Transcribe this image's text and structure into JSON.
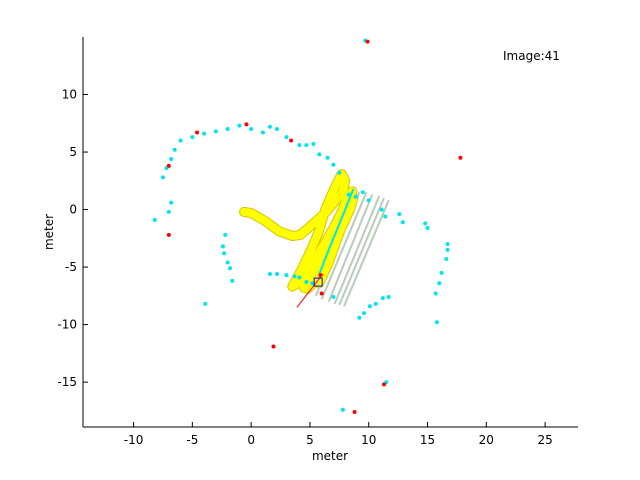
{
  "chart_data": {
    "type": "scatter",
    "title": "",
    "xlabel": "meter",
    "ylabel": "meter",
    "xlim": [
      -14.3,
      27.8
    ],
    "ylim": [
      -18.9,
      15.0
    ],
    "xticks": [
      -10,
      -5,
      0,
      5,
      10,
      15,
      20,
      25
    ],
    "yticks": [
      10,
      5,
      0,
      -5,
      -10,
      -15
    ],
    "xtick_labels": [
      "-10",
      "-5",
      "0",
      "5",
      "10",
      "15",
      "20",
      "25"
    ],
    "ytick_labels": [
      "10",
      "5",
      "0",
      "-5",
      "-10",
      "-15"
    ],
    "annotation": "Image:41",
    "grid": false,
    "colors": {
      "landmarks": "#00e5ee",
      "features": "#ff0000",
      "trajectory": "#ffff00",
      "trajectory_edge": "#d9c400",
      "vehicle_history": "#b8ccb8"
    },
    "series": [
      {
        "marker": "dot",
        "color": "#00e5ee",
        "points": [
          [
            9.7,
            14.7
          ],
          [
            -5.0,
            6.3
          ],
          [
            -6.0,
            6.0
          ],
          [
            -3.0,
            6.8
          ],
          [
            -4.0,
            6.6
          ],
          [
            -2.0,
            7.0
          ],
          [
            -1.0,
            7.3
          ],
          [
            0.0,
            7.0
          ],
          [
            1.0,
            6.7
          ],
          [
            1.6,
            7.2
          ],
          [
            2.2,
            7.0
          ],
          [
            3.0,
            6.3
          ],
          [
            4.1,
            5.6
          ],
          [
            4.7,
            5.6
          ],
          [
            5.3,
            5.7
          ],
          [
            5.8,
            4.8
          ],
          [
            6.5,
            4.5
          ],
          [
            7.0,
            3.9
          ],
          [
            7.5,
            3.2
          ],
          [
            -6.5,
            5.2
          ],
          [
            -6.8,
            4.4
          ],
          [
            -7.2,
            3.6
          ],
          [
            -7.5,
            2.8
          ],
          [
            -6.8,
            0.6
          ],
          [
            -7.0,
            -0.2
          ],
          [
            -8.2,
            -0.9
          ],
          [
            -2.2,
            -2.2
          ],
          [
            -2.4,
            -3.2
          ],
          [
            -2.3,
            -3.8
          ],
          [
            -2.0,
            -4.6
          ],
          [
            -1.8,
            -5.1
          ],
          [
            -1.6,
            -6.2
          ],
          [
            -3.9,
            -8.2
          ],
          [
            1.6,
            -5.6
          ],
          [
            2.2,
            -5.6
          ],
          [
            3.0,
            -5.7
          ],
          [
            3.7,
            -5.8
          ],
          [
            4.1,
            -5.9
          ],
          [
            4.7,
            -6.3
          ],
          [
            5.2,
            -6.4
          ],
          [
            7.0,
            -7.6
          ],
          [
            9.2,
            -9.4
          ],
          [
            9.6,
            -9.0
          ],
          [
            10.1,
            -8.4
          ],
          [
            10.6,
            -8.2
          ],
          [
            11.2,
            -7.7
          ],
          [
            11.7,
            -7.6
          ],
          [
            8.3,
            1.3
          ],
          [
            8.9,
            1.1
          ],
          [
            9.5,
            1.5
          ],
          [
            10.0,
            0.8
          ],
          [
            11.1,
            0.0
          ],
          [
            11.4,
            -0.6
          ],
          [
            12.6,
            -0.4
          ],
          [
            12.9,
            -1.1
          ],
          [
            14.8,
            -1.2
          ],
          [
            15.0,
            -1.6
          ],
          [
            16.7,
            -3.0
          ],
          [
            16.7,
            -3.5
          ],
          [
            16.6,
            -4.3
          ],
          [
            16.2,
            -5.5
          ],
          [
            16.0,
            -6.4
          ],
          [
            15.7,
            -7.3
          ],
          [
            15.8,
            -9.8
          ],
          [
            11.5,
            -15.0
          ],
          [
            7.8,
            -17.4
          ]
        ]
      },
      {
        "marker": "dot",
        "color": "#ff0000",
        "points": [
          [
            9.9,
            14.6
          ],
          [
            -4.6,
            6.7
          ],
          [
            -0.4,
            7.4
          ],
          [
            3.4,
            6.0
          ],
          [
            -7.0,
            3.8
          ],
          [
            -7.0,
            -2.2
          ],
          [
            17.8,
            4.5
          ],
          [
            5.9,
            -5.7
          ],
          [
            6.0,
            -7.3
          ],
          [
            1.9,
            -11.9
          ],
          [
            11.3,
            -15.2
          ],
          [
            8.8,
            -17.6
          ]
        ]
      }
    ],
    "trajectory": [
      [
        -0.6,
        -0.2
      ],
      [
        0.0,
        -0.3
      ],
      [
        1.2,
        -1.0
      ],
      [
        2.4,
        -1.9
      ],
      [
        3.5,
        -2.3
      ],
      [
        4.2,
        -2.2
      ],
      [
        5.2,
        -1.3
      ],
      [
        6.3,
        -0.3
      ],
      [
        7.2,
        0.8
      ],
      [
        7.8,
        1.5
      ],
      [
        8.0,
        2.5
      ],
      [
        7.7,
        3.1
      ],
      [
        7.2,
        2.1
      ],
      [
        6.8,
        1.2
      ],
      [
        6.3,
        0.0
      ],
      [
        5.8,
        -1.8
      ],
      [
        5.1,
        -3.5
      ],
      [
        4.3,
        -5.2
      ],
      [
        3.5,
        -6.7
      ],
      [
        4.3,
        -6.2
      ],
      [
        5.4,
        -4.4
      ],
      [
        6.5,
        -2.5
      ],
      [
        7.4,
        -0.9
      ],
      [
        8.3,
        0.6
      ],
      [
        8.6,
        1.6
      ],
      [
        8.0,
        0.6
      ],
      [
        7.4,
        -1.2
      ],
      [
        6.6,
        -3.0
      ],
      [
        5.8,
        -4.8
      ],
      [
        5.1,
        -6.2
      ],
      [
        4.5,
        -6.8
      ],
      [
        5.2,
        -5.4
      ],
      [
        6.2,
        -3.4
      ],
      [
        7.1,
        -1.4
      ],
      [
        7.9,
        0.2
      ],
      [
        8.2,
        1.0
      ],
      [
        7.7,
        -0.2
      ],
      [
        7.0,
        -2.2
      ],
      [
        6.2,
        -4.3
      ],
      [
        5.5,
        -6.0
      ],
      [
        4.8,
        -6.9
      ],
      [
        5.6,
        -6.1
      ],
      [
        6.5,
        -4.1
      ],
      [
        7.5,
        -2.0
      ],
      [
        8.4,
        0.0
      ],
      [
        8.7,
        1.0
      ],
      [
        8.1,
        -0.4
      ],
      [
        7.3,
        -2.6
      ],
      [
        6.6,
        -4.6
      ],
      [
        5.8,
        -6.4
      ]
    ],
    "vehicle_history_lines": [
      {
        "from": [
          8.6,
          1.6
        ],
        "to": [
          4.9,
          -7.3
        ]
      },
      {
        "from": [
          9.2,
          1.5
        ],
        "to": [
          5.5,
          -7.5
        ]
      },
      {
        "from": [
          9.8,
          1.5
        ],
        "to": [
          6.0,
          -7.8
        ]
      },
      {
        "from": [
          10.3,
          1.3
        ],
        "to": [
          6.6,
          -8.0
        ]
      },
      {
        "from": [
          10.9,
          1.2
        ],
        "to": [
          7.1,
          -8.2
        ]
      },
      {
        "from": [
          11.3,
          1.0
        ],
        "to": [
          7.5,
          -8.3
        ]
      },
      {
        "from": [
          11.7,
          0.8
        ],
        "to": [
          7.9,
          -8.4
        ]
      }
    ],
    "cyan_track": [
      [
        8.7,
        1.8
      ],
      [
        8.0,
        0.0
      ],
      [
        7.2,
        -2.0
      ],
      [
        6.4,
        -4.0
      ],
      [
        5.8,
        -5.6
      ]
    ],
    "vehicle": {
      "position": [
        5.7,
        -6.3
      ],
      "heading_line": {
        "from": [
          6.1,
          -5.6
        ],
        "to": [
          3.9,
          -8.5
        ]
      }
    }
  }
}
